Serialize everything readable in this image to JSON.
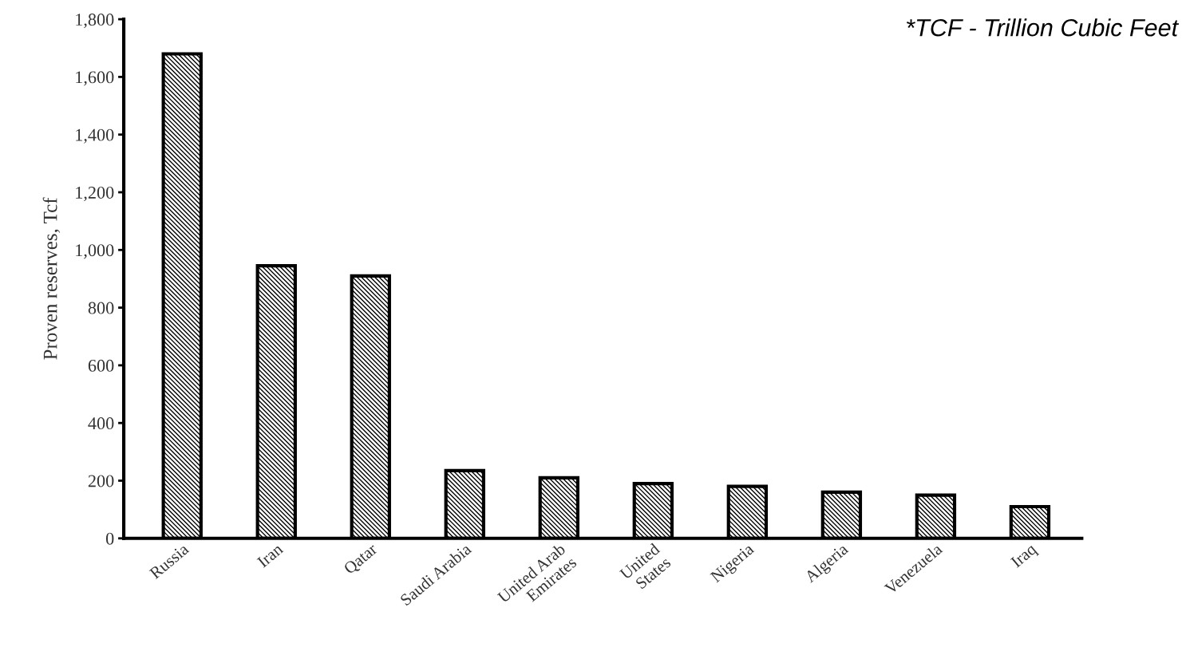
{
  "chart_data": {
    "type": "bar",
    "ylabel": "Proven reserves, Tcf",
    "categories": [
      "Russia",
      "Iran",
      "Qatar",
      "Saudi Arabia",
      "United Arab\nEmirates",
      "United\nStates",
      "Nigeria",
      "Algeria",
      "Venezuela",
      "Iraq"
    ],
    "values": [
      1680,
      945,
      910,
      235,
      210,
      190,
      180,
      160,
      150,
      110
    ],
    "color": "#000000",
    "ylim": [
      0,
      1800
    ],
    "yticks": [
      0,
      200,
      400,
      600,
      800,
      {
        "value": 1000,
        "label": "1,000"
      },
      {
        "value": 1200,
        "label": "1,200"
      },
      {
        "value": 1400,
        "label": "1,400"
      },
      {
        "value": 1600,
        "label": "1,600"
      },
      {
        "value": 1800,
        "label": "1,800"
      }
    ],
    "grid": false,
    "legend": false,
    "annotations": [
      "*TCF - Trillion Cubic Feet"
    ]
  }
}
